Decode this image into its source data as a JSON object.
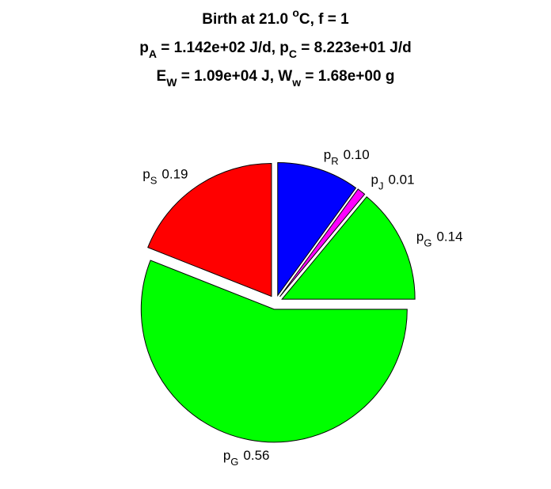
{
  "chart_data": {
    "type": "pie",
    "title": [
      [
        {
          "text": "Birth at 21.0 "
        },
        {
          "sup": "o"
        },
        {
          "text": "C, f = 1"
        }
      ],
      [
        {
          "text": "p"
        },
        {
          "sub": "A"
        },
        {
          "text": " = 1.142e+02 J/d, p"
        },
        {
          "sub": "C"
        },
        {
          "text": " = 8.223e+01 J/d"
        }
      ],
      [
        {
          "text": "E"
        },
        {
          "sub": "W"
        },
        {
          "text": " = 1.09e+04 J, W"
        },
        {
          "sub": "w"
        },
        {
          "text": " = 1.68e+00 g"
        }
      ]
    ],
    "categories": [
      [
        "p",
        "R"
      ],
      [
        "p",
        "J"
      ],
      [
        "p",
        "G"
      ],
      [
        "p",
        "G"
      ],
      [
        "p",
        "S"
      ]
    ],
    "values": [
      0.1,
      0.01,
      0.14,
      0.56,
      0.19
    ],
    "value_labels": [
      "0.10",
      "0.01",
      "0.14",
      "0.56",
      "0.19"
    ],
    "colors": [
      "#0000ff",
      "#ff00ff",
      "#00ff00",
      "#00ff00",
      "#ff0000"
    ]
  }
}
